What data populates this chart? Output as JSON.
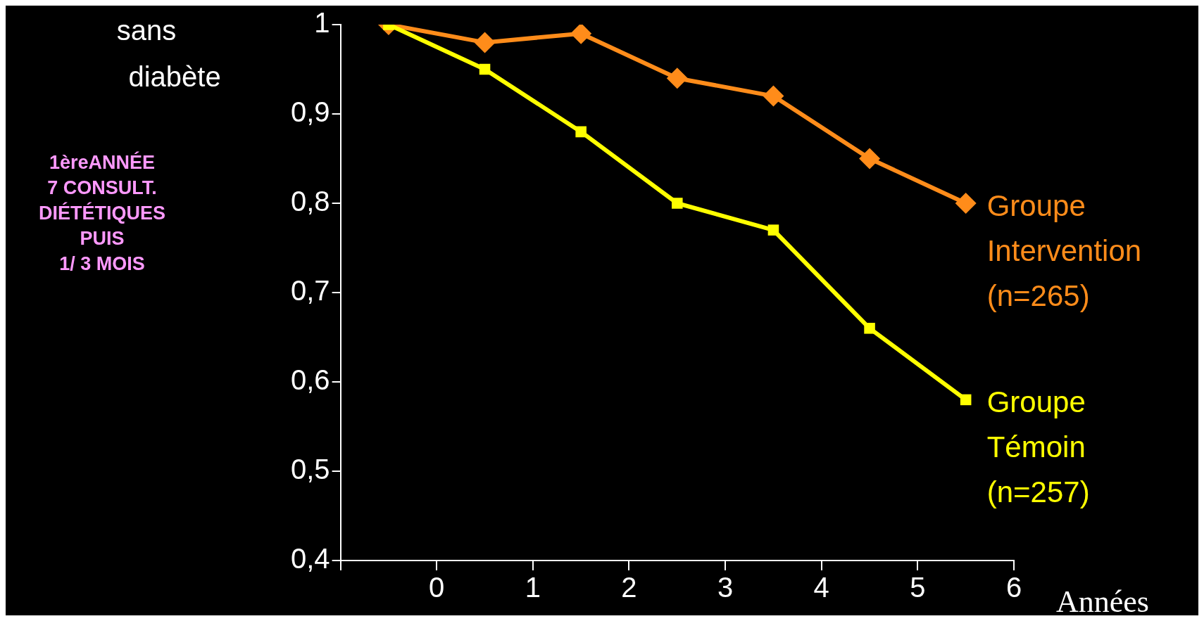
{
  "chart_data": {
    "type": "line",
    "ylabel": "sans diabète",
    "xlabel": "Années",
    "annotations": [
      "1èreANNÉE\n7 CONSULT.\nDIÉTÉTIQUES\nPUIS\n1/ 3 MOIS"
    ],
    "x": [
      -0.5,
      0.5,
      1.5,
      2.5,
      3.5,
      4.5,
      5.5
    ],
    "series": [
      {
        "name": "Groupe Intervention (n=265)",
        "color": "#ff8c1a",
        "marker": "diamond",
        "values": [
          1,
          0.98,
          0.99,
          0.94,
          0.92,
          0.85,
          0.8
        ]
      },
      {
        "name": "Groupe Témoin (n=257)",
        "color": "#ffff00",
        "marker": "square",
        "values": [
          1,
          0.95,
          0.88,
          0.8,
          0.77,
          0.66,
          0.58
        ]
      }
    ],
    "xlim": [
      -1,
      6
    ],
    "xticks": [
      {
        "value": -1,
        "label": null
      },
      0,
      1,
      2,
      3,
      4,
      5,
      6
    ],
    "ylim": [
      0.4,
      1
    ],
    "yticks": [
      {
        "value": 0.4,
        "label": "0,4"
      },
      {
        "value": 0.5,
        "label": "0,5"
      },
      {
        "value": 0.6,
        "label": "0,6"
      },
      {
        "value": 0.7,
        "label": "0,7"
      },
      {
        "value": 0.8,
        "label": "0,8"
      },
      {
        "value": 0.9,
        "label": "0,9"
      },
      1
    ],
    "grid": false,
    "legend": false,
    "line_style": "solid"
  }
}
